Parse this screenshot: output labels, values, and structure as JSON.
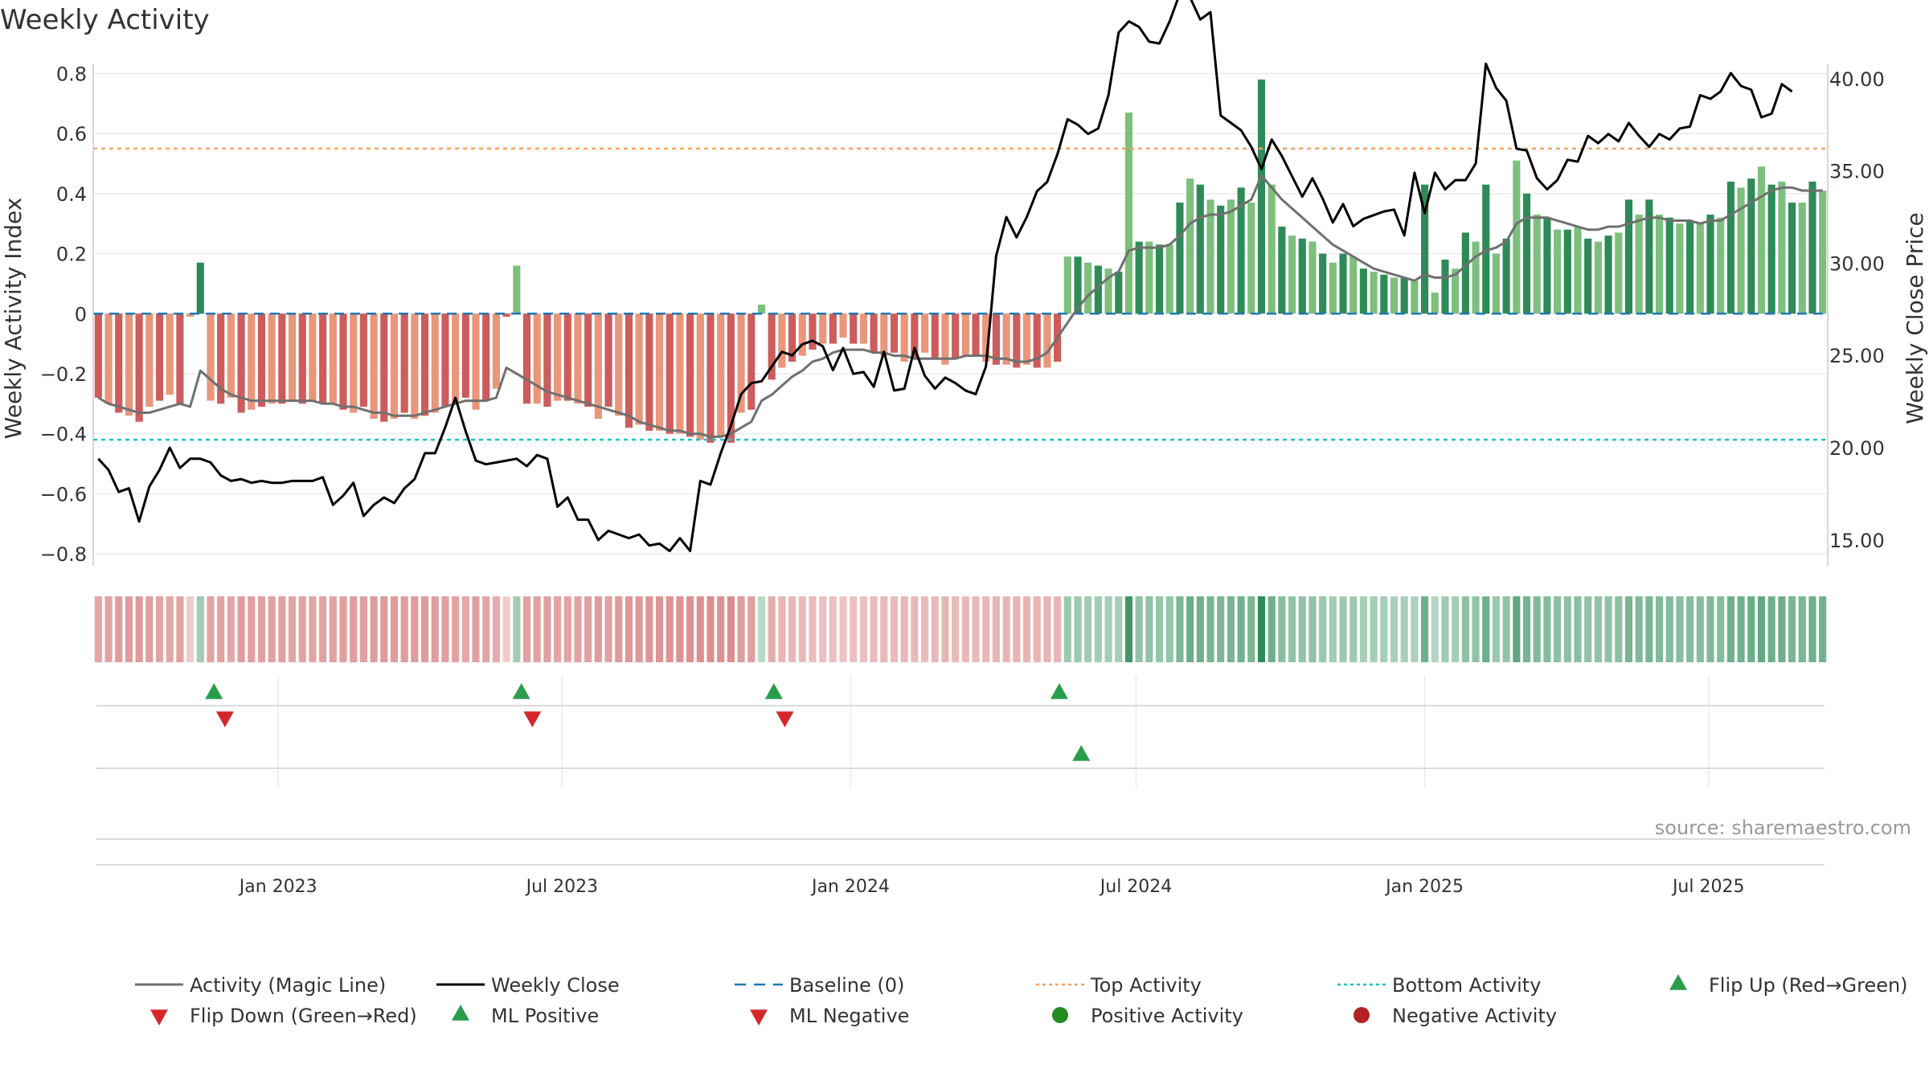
{
  "colors": {
    "green_dark": "#2e8b57",
    "green_light": "#7dbf7d",
    "red_dark": "#cd5c5c",
    "red_light": "#e9967a",
    "magic_line": "#707070",
    "close_line": "#000000",
    "baseline": "#1f77b4",
    "top_line": "#f4a460",
    "bottom_line": "#20c0c0",
    "marker_green": "#2a9d4b",
    "marker_red": "#d62728",
    "neg_dot": "#b22222",
    "pos_dot": "#228b22"
  },
  "chart_data": {
    "type": "bar",
    "title": "Weekly Activity",
    "ylabel": "Weekly Activity Index",
    "y2label": "Weekly Close Price",
    "source": "source: sharemaestro.com",
    "ylim": [
      -0.84,
      0.82
    ],
    "yticks": [
      -0.8,
      -0.6,
      -0.4,
      -0.2,
      0,
      0.2,
      0.4,
      0.6,
      0.8
    ],
    "ytick_labels": [
      "−0.8",
      "−0.6",
      "−0.4",
      "−0.2",
      "0",
      "0.2",
      "0.4",
      "0.6",
      "0.8"
    ],
    "y2lim": [
      13.6,
      40.6
    ],
    "y2ticks": [
      15,
      20,
      25,
      30,
      35,
      40
    ],
    "y2tick_labels": [
      "15.00",
      "20.00",
      "25.00",
      "30.00",
      "35.00",
      "40.00"
    ],
    "x_start": "2022-09-05",
    "x_end": "2025-09-15",
    "xticks": [
      {
        "date": "2023-01-01",
        "label": "Jan 2023"
      },
      {
        "date": "2023-07-01",
        "label": "Jul 2023"
      },
      {
        "date": "2024-01-01",
        "label": "Jan 2024"
      },
      {
        "date": "2024-07-01",
        "label": "Jul 2024"
      },
      {
        "date": "2025-01-01",
        "label": "Jan 2025"
      },
      {
        "date": "2025-07-01",
        "label": "Jul 2025"
      }
    ],
    "top_activity": 0.55,
    "bottom_activity": -0.42,
    "activity": [
      -0.28,
      -0.3,
      -0.33,
      -0.34,
      -0.36,
      -0.31,
      -0.29,
      -0.27,
      -0.3,
      -0.01,
      0.17,
      -0.29,
      -0.3,
      -0.28,
      -0.33,
      -0.32,
      -0.31,
      -0.3,
      -0.3,
      -0.29,
      -0.3,
      -0.29,
      -0.3,
      -0.3,
      -0.32,
      -0.33,
      -0.31,
      -0.35,
      -0.36,
      -0.35,
      -0.33,
      -0.35,
      -0.34,
      -0.33,
      -0.31,
      -0.3,
      -0.28,
      -0.32,
      -0.29,
      -0.25,
      -0.01,
      0.16,
      -0.3,
      -0.3,
      -0.31,
      -0.29,
      -0.29,
      -0.3,
      -0.31,
      -0.35,
      -0.31,
      -0.34,
      -0.38,
      -0.37,
      -0.39,
      -0.39,
      -0.4,
      -0.4,
      -0.41,
      -0.42,
      -0.43,
      -0.41,
      -0.43,
      -0.33,
      -0.32,
      0.03,
      -0.22,
      -0.18,
      -0.16,
      -0.14,
      -0.12,
      -0.1,
      -0.1,
      -0.08,
      -0.1,
      -0.1,
      -0.13,
      -0.14,
      -0.13,
      -0.16,
      -0.15,
      -0.13,
      -0.15,
      -0.17,
      -0.15,
      -0.14,
      -0.14,
      -0.16,
      -0.17,
      -0.17,
      -0.18,
      -0.17,
      -0.18,
      -0.18,
      -0.16,
      0.19,
      0.19,
      0.17,
      0.16,
      0.15,
      0.14,
      0.67,
      0.24,
      0.24,
      0.23,
      0.23,
      0.37,
      0.45,
      0.43,
      0.38,
      0.36,
      0.38,
      0.42,
      0.37,
      0.78,
      0.43,
      0.29,
      0.26,
      0.25,
      0.24,
      0.2,
      0.17,
      0.2,
      0.19,
      0.15,
      0.14,
      0.13,
      0.12,
      0.12,
      0.11,
      0.43,
      0.07,
      0.18,
      0.15,
      0.27,
      0.24,
      0.43,
      0.2,
      0.25,
      0.51,
      0.4,
      0.33,
      0.32,
      0.28,
      0.28,
      0.29,
      0.25,
      0.24,
      0.26,
      0.27,
      0.38,
      0.33,
      0.38,
      0.33,
      0.32,
      0.3,
      0.31,
      0.3,
      0.33,
      0.32,
      0.44,
      0.42,
      0.45,
      0.49,
      0.43,
      0.44,
      0.37,
      0.37,
      0.44,
      0.41
    ],
    "magic_line": [
      -0.28,
      -0.3,
      -0.31,
      -0.32,
      -0.33,
      -0.33,
      -0.32,
      -0.31,
      -0.3,
      -0.31,
      -0.19,
      -0.22,
      -0.25,
      -0.27,
      -0.28,
      -0.29,
      -0.29,
      -0.29,
      -0.29,
      -0.29,
      -0.29,
      -0.29,
      -0.3,
      -0.3,
      -0.31,
      -0.31,
      -0.32,
      -0.33,
      -0.33,
      -0.34,
      -0.34,
      -0.34,
      -0.33,
      -0.32,
      -0.31,
      -0.3,
      -0.29,
      -0.29,
      -0.29,
      -0.28,
      -0.18,
      -0.2,
      -0.22,
      -0.24,
      -0.26,
      -0.27,
      -0.28,
      -0.29,
      -0.3,
      -0.31,
      -0.32,
      -0.33,
      -0.34,
      -0.36,
      -0.37,
      -0.38,
      -0.39,
      -0.39,
      -0.4,
      -0.4,
      -0.41,
      -0.41,
      -0.4,
      -0.38,
      -0.36,
      -0.29,
      -0.27,
      -0.24,
      -0.21,
      -0.19,
      -0.16,
      -0.15,
      -0.13,
      -0.12,
      -0.12,
      -0.12,
      -0.13,
      -0.13,
      -0.14,
      -0.14,
      -0.15,
      -0.15,
      -0.15,
      -0.15,
      -0.15,
      -0.14,
      -0.14,
      -0.14,
      -0.15,
      -0.15,
      -0.16,
      -0.16,
      -0.15,
      -0.13,
      -0.08,
      -0.03,
      0.02,
      0.06,
      0.09,
      0.12,
      0.14,
      0.21,
      0.22,
      0.22,
      0.22,
      0.23,
      0.26,
      0.3,
      0.32,
      0.33,
      0.33,
      0.34,
      0.36,
      0.38,
      0.46,
      0.42,
      0.38,
      0.35,
      0.32,
      0.29,
      0.26,
      0.23,
      0.21,
      0.19,
      0.17,
      0.15,
      0.14,
      0.13,
      0.12,
      0.11,
      0.13,
      0.12,
      0.12,
      0.13,
      0.16,
      0.19,
      0.21,
      0.22,
      0.24,
      0.3,
      0.32,
      0.32,
      0.32,
      0.31,
      0.3,
      0.29,
      0.28,
      0.28,
      0.29,
      0.29,
      0.3,
      0.31,
      0.32,
      0.32,
      0.31,
      0.31,
      0.31,
      0.3,
      0.31,
      0.31,
      0.33,
      0.35,
      0.37,
      0.39,
      0.41,
      0.42,
      0.42,
      0.41,
      0.41,
      0.41
    ],
    "weekly_close": [
      19.4,
      18.8,
      17.6,
      17.8,
      16.0,
      17.9,
      18.8,
      20.0,
      18.9,
      19.4,
      19.4,
      19.2,
      18.5,
      18.2,
      18.3,
      18.1,
      18.2,
      18.1,
      18.1,
      18.2,
      18.2,
      18.2,
      18.4,
      16.9,
      17.4,
      18.1,
      16.3,
      16.9,
      17.3,
      17.0,
      17.8,
      18.3,
      19.7,
      19.7,
      21.1,
      22.7,
      20.9,
      19.3,
      19.1,
      19.2,
      19.3,
      19.4,
      19.0,
      19.6,
      19.4,
      16.8,
      17.3,
      16.1,
      16.1,
      15.0,
      15.5,
      15.3,
      15.1,
      15.3,
      14.7,
      14.8,
      14.4,
      15.1,
      14.4,
      18.2,
      18.0,
      19.7,
      21.2,
      22.9,
      23.5,
      23.6,
      24.4,
      25.2,
      25.0,
      25.6,
      25.8,
      25.5,
      24.2,
      25.4,
      24.0,
      24.1,
      23.3,
      25.2,
      23.1,
      23.2,
      25.4,
      23.9,
      23.2,
      23.8,
      23.5,
      23.1,
      22.9,
      24.4,
      30.4,
      32.5,
      31.4,
      32.5,
      33.9,
      34.4,
      35.9,
      37.8,
      37.5,
      37.0,
      37.3,
      39.1,
      42.5,
      43.1,
      42.8,
      42.0,
      41.9,
      43.1,
      44.6,
      44.4,
      43.2,
      43.6,
      38.0,
      37.6,
      37.2,
      36.3,
      35.1,
      36.7,
      35.8,
      34.7,
      33.6,
      34.6,
      33.5,
      32.2,
      33.2,
      32.0,
      32.4,
      32.6,
      32.8,
      32.9,
      31.5,
      34.9,
      32.7,
      34.9,
      34.0,
      34.5,
      34.5,
      35.4,
      40.8,
      39.5,
      38.8,
      36.2,
      36.1,
      34.6,
      34.0,
      34.5,
      35.6,
      35.5,
      36.9,
      36.5,
      37.0,
      36.6,
      37.6,
      36.9,
      36.3,
      37.0,
      36.7,
      37.3,
      37.4,
      39.1,
      38.9,
      39.3,
      40.3,
      39.6,
      39.4,
      37.9,
      38.1,
      39.7,
      39.3
    ],
    "ml_positive_dates": [
      "2022-11-21",
      "2023-06-05",
      "2023-11-13",
      "2024-05-13"
    ],
    "ml_negative_dates": [
      "2022-11-28",
      "2023-06-12",
      "2023-11-20"
    ],
    "flip_up_dates": [
      "2024-05-27"
    ]
  },
  "legend": [
    {
      "label": "Activity (Magic Line)",
      "kind": "line",
      "color": "#707070"
    },
    {
      "label": "Weekly Close",
      "kind": "line",
      "color": "#000000"
    },
    {
      "label": "Baseline (0)",
      "kind": "dash",
      "color": "#1f77b4"
    },
    {
      "label": "Top Activity",
      "kind": "dot-line",
      "color": "#f4a460"
    },
    {
      "label": "Bottom Activity",
      "kind": "dot-line",
      "color": "#20c0c0"
    },
    {
      "label": "Flip Up (Red→Green)",
      "kind": "tri-up",
      "color": "#2a9d4b"
    },
    {
      "label": "Flip Down (Green→Red)",
      "kind": "tri-down",
      "color": "#d62728"
    },
    {
      "label": "ML Positive",
      "kind": "tri-up",
      "color": "#2a9d4b"
    },
    {
      "label": "ML Negative",
      "kind": "tri-down",
      "color": "#d62728"
    },
    {
      "label": "Positive Activity",
      "kind": "circle",
      "color": "#228b22"
    },
    {
      "label": "Negative Activity",
      "kind": "circle",
      "color": "#b22222"
    }
  ]
}
